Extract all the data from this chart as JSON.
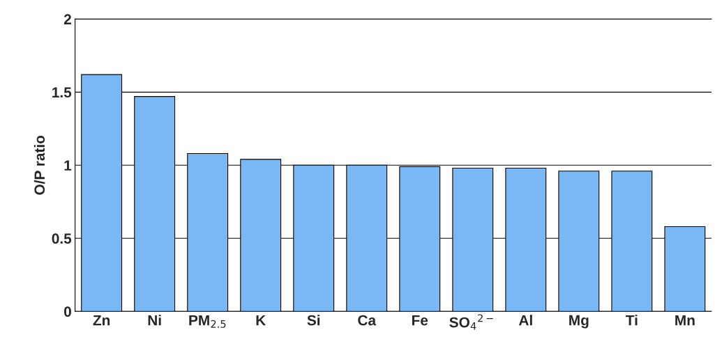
{
  "chart_data": {
    "type": "bar",
    "ylabel": "O/P ratio",
    "categories": [
      "Zn",
      "Ni",
      "PM$_{2.5}$",
      "K",
      "Si",
      "Ca",
      "Fe",
      "SO$_{4}$$^{2−}$",
      "Al",
      "Mg",
      "Ti",
      "Mn"
    ],
    "values": [
      1.62,
      1.47,
      1.08,
      1.04,
      1.0,
      1.0,
      0.99,
      0.98,
      0.98,
      0.96,
      0.96,
      0.58
    ],
    "color": "#7ab8f5",
    "ylim": [
      0,
      2
    ],
    "yticks": [
      0,
      0.5,
      1,
      1.5,
      2
    ],
    "grid": "y"
  }
}
